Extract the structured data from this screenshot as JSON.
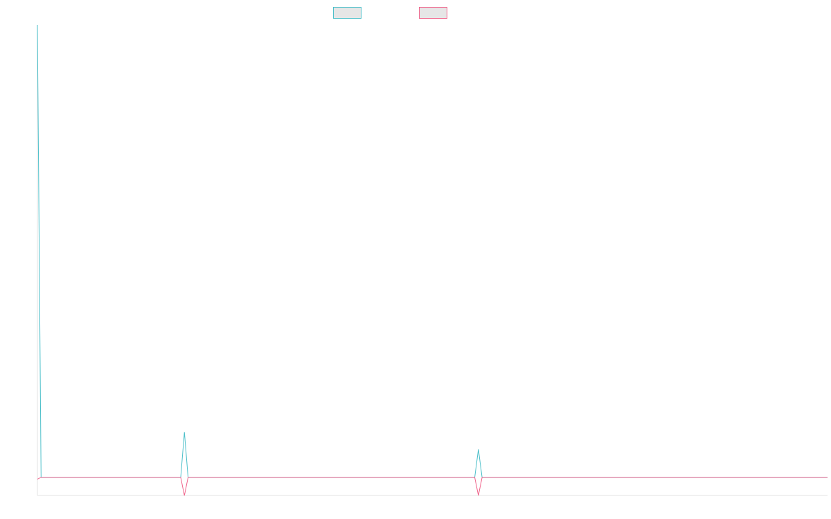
{
  "chart_data": {
    "type": "line",
    "x_count": 216,
    "series": [
      {
        "color": "#4bbfc9",
        "fill": "#e6e6e6",
        "points": [
          {
            "i": 0,
            "v": 100
          },
          {
            "i": 1,
            "v": 0
          },
          {
            "i": 39,
            "v": 0
          },
          {
            "i": 40,
            "v": 10
          },
          {
            "i": 41,
            "v": 0
          },
          {
            "i": 119,
            "v": 0
          },
          {
            "i": 120,
            "v": 6.2
          },
          {
            "i": 121,
            "v": 0
          },
          {
            "i": 215,
            "v": 0
          }
        ]
      },
      {
        "color": "#f0628a",
        "fill": "#e6e6e6",
        "points": [
          {
            "i": 0,
            "v": -0.4
          },
          {
            "i": 1,
            "v": 0
          },
          {
            "i": 39,
            "v": 0
          },
          {
            "i": 40,
            "v": -4
          },
          {
            "i": 41,
            "v": 0
          },
          {
            "i": 119,
            "v": 0
          },
          {
            "i": 120,
            "v": -4
          },
          {
            "i": 121,
            "v": 0
          },
          {
            "i": 215,
            "v": 0
          }
        ]
      }
    ],
    "ylim": [
      -4,
      100
    ],
    "grid": false,
    "legend_position": "top-center"
  }
}
